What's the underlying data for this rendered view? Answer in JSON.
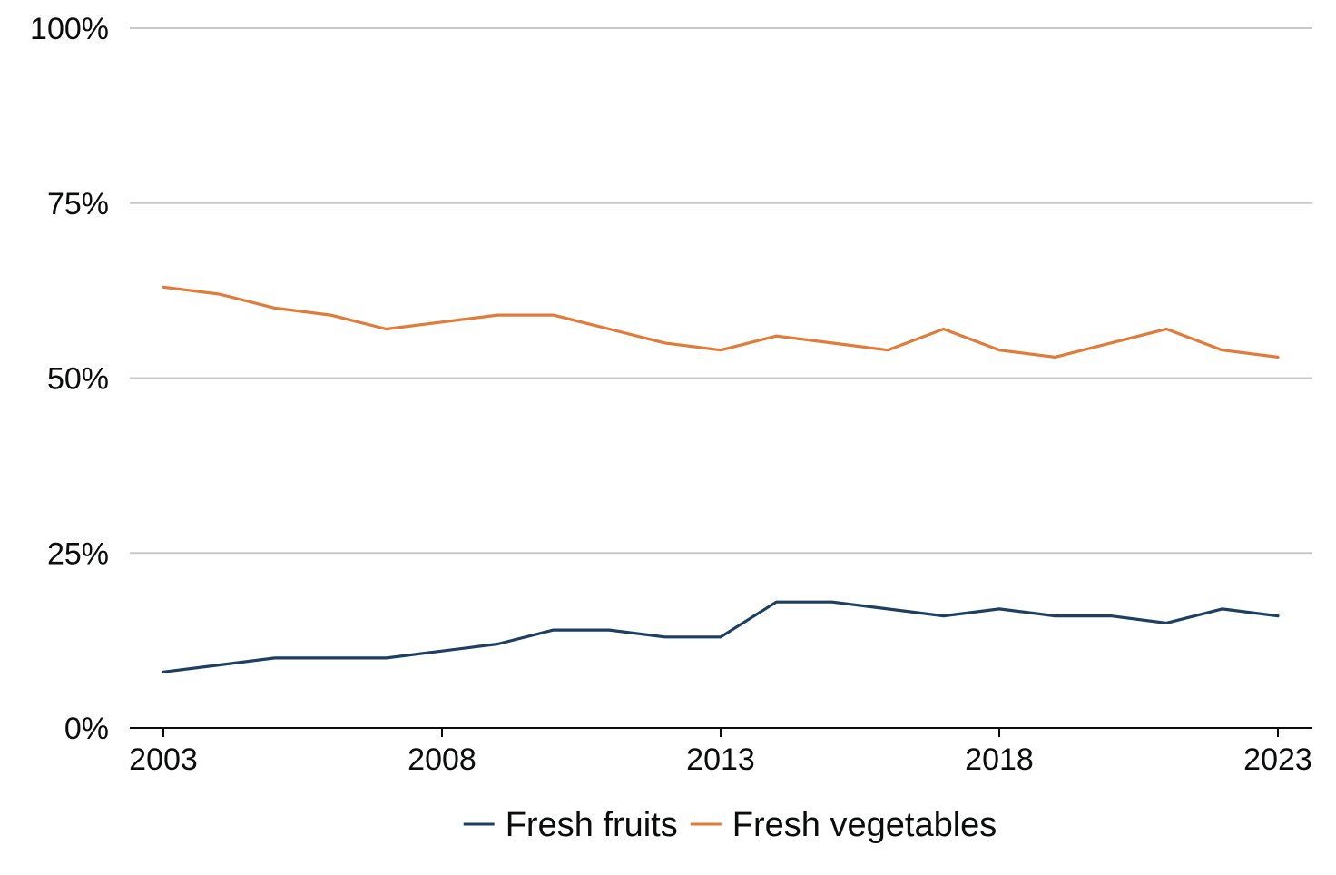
{
  "chart_data": {
    "type": "line",
    "title": "",
    "xlabel": "",
    "ylabel": "",
    "x": [
      2003,
      2004,
      2005,
      2006,
      2007,
      2008,
      2009,
      2010,
      2011,
      2012,
      2013,
      2014,
      2015,
      2016,
      2017,
      2018,
      2019,
      2020,
      2021,
      2022,
      2023
    ],
    "xticks": [
      "2003",
      "2008",
      "2013",
      "2018",
      "2023"
    ],
    "ylim": [
      0,
      100
    ],
    "yticks": [
      {
        "value": 0,
        "label": "0%"
      },
      {
        "value": 25,
        "label": "25%"
      },
      {
        "value": 50,
        "label": "50%"
      },
      {
        "value": 75,
        "label": "75%"
      },
      {
        "value": 100,
        "label": "100%"
      }
    ],
    "grid": true,
    "legend_position": "bottom",
    "series": [
      {
        "name": "Fresh fruits",
        "color": "#1d3f62",
        "values": [
          8,
          9,
          10,
          10,
          10,
          11,
          12,
          14,
          14,
          13,
          13,
          18,
          18,
          17,
          16,
          17,
          16,
          16,
          15,
          17,
          16
        ]
      },
      {
        "name": "Fresh vegetables",
        "color": "#e07b39",
        "values": [
          63,
          62,
          60,
          59,
          57,
          58,
          59,
          59,
          57,
          55,
          54,
          56,
          55,
          54,
          57,
          54,
          53,
          55,
          57,
          54,
          53
        ]
      }
    ]
  }
}
